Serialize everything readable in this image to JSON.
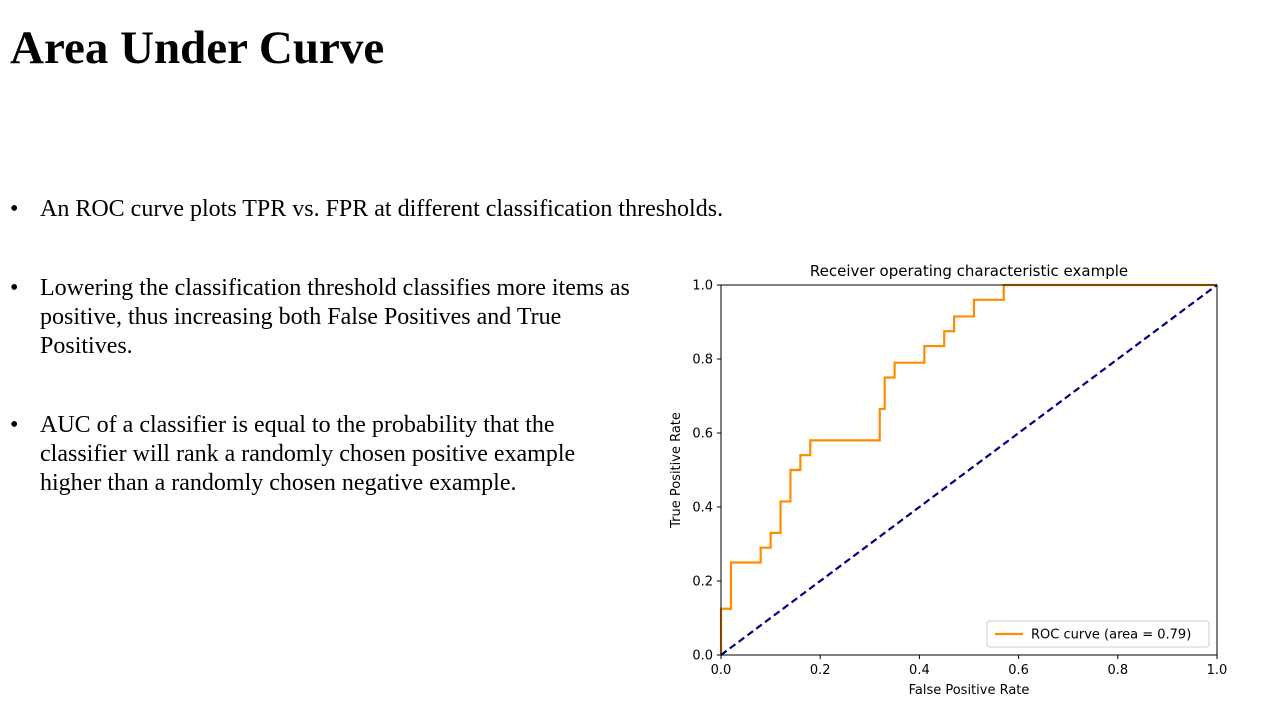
{
  "slide": {
    "title": "Area Under Curve",
    "bullets": [
      {
        "marker": "•",
        "text": "An ROC curve plots TPR vs. FPR at different classification thresholds."
      },
      {
        "marker": "•",
        "text": "Lowering the classification threshold classifies more items as positive, thus increasing both False Positives and True Positives."
      },
      {
        "marker": "•",
        "text": "AUC of a classifier is equal to the probability that the classifier will rank a randomly chosen positive example higher than a randomly chosen negative example."
      }
    ]
  },
  "chart_data": {
    "type": "line",
    "title": "Receiver operating characteristic example",
    "xlabel": "False Positive Rate",
    "ylabel": "True Positive Rate",
    "xlim": [
      0.0,
      1.0
    ],
    "ylim": [
      0.0,
      1.0
    ],
    "xticks": [
      "0.0",
      "0.2",
      "0.4",
      "0.6",
      "0.8",
      "1.0"
    ],
    "yticks": [
      "0.0",
      "0.2",
      "0.4",
      "0.6",
      "0.8",
      "1.0"
    ],
    "grid": false,
    "legend_position": "lower-right",
    "series": [
      {
        "name": "ROC curve (area = 0.79)",
        "color": "#ff8c00",
        "style": "solid-step",
        "x": [
          0.0,
          0.0,
          0.02,
          0.02,
          0.08,
          0.08,
          0.1,
          0.1,
          0.12,
          0.12,
          0.14,
          0.14,
          0.16,
          0.16,
          0.18,
          0.18,
          0.32,
          0.32,
          0.33,
          0.33,
          0.35,
          0.35,
          0.41,
          0.41,
          0.45,
          0.45,
          0.47,
          0.47,
          0.51,
          0.51,
          0.57,
          0.57,
          1.0
        ],
        "y": [
          0.0,
          0.125,
          0.125,
          0.25,
          0.25,
          0.29,
          0.29,
          0.33,
          0.33,
          0.415,
          0.415,
          0.5,
          0.5,
          0.54,
          0.54,
          0.58,
          0.58,
          0.665,
          0.665,
          0.75,
          0.75,
          0.79,
          0.79,
          0.835,
          0.835,
          0.875,
          0.875,
          0.915,
          0.915,
          0.96,
          0.96,
          1.0,
          1.0
        ]
      },
      {
        "name": "",
        "color": "#000080",
        "style": "dashed",
        "x": [
          0.0,
          1.0
        ],
        "y": [
          0.0,
          1.0
        ]
      }
    ]
  }
}
